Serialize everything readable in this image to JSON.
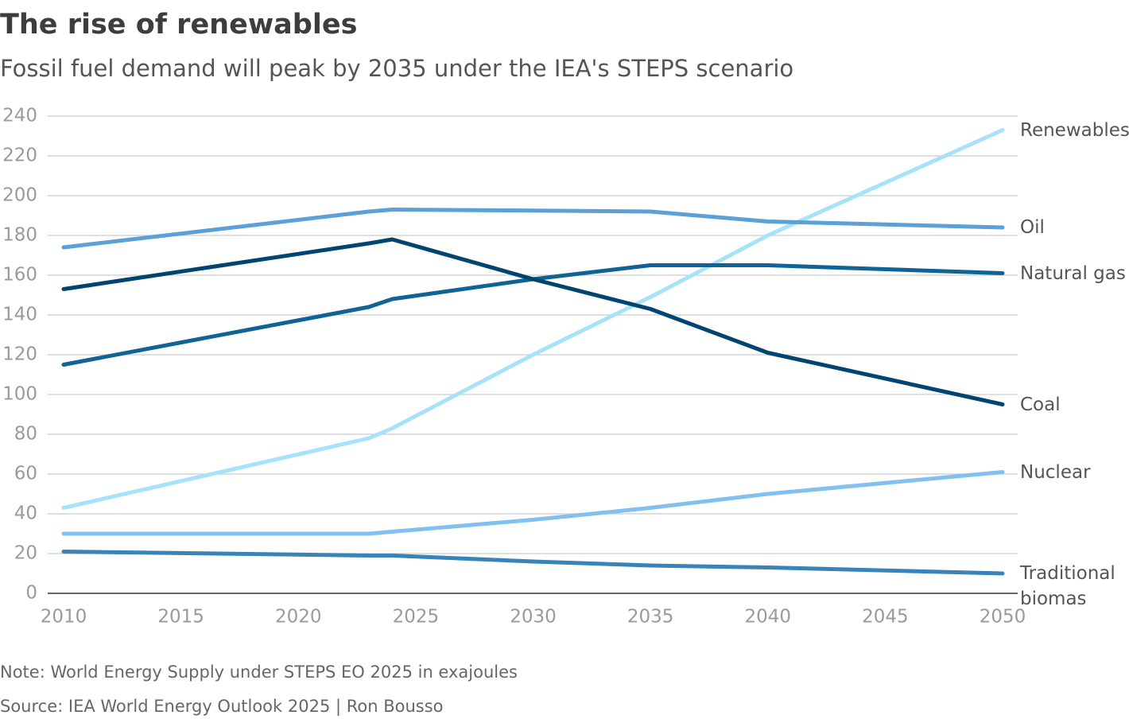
{
  "chart_data": {
    "type": "line",
    "title": "The rise of renewables",
    "subtitle": "Fossil fuel demand will peak by 2035 under the IEA's STEPS scenario",
    "note": "Note: World Energy Supply under STEPS EO 2025 in exajoules",
    "source": "Source: IEA World Energy Outlook 2025 | Ron Bousso",
    "x": [
      2010,
      2023,
      2024,
      2030,
      2035,
      2040,
      2050
    ],
    "xlim": [
      2010,
      2050
    ],
    "xticks": [
      2010,
      2015,
      2020,
      2025,
      2030,
      2035,
      2040,
      2045,
      2050
    ],
    "ylim": [
      0,
      240
    ],
    "yticks": [
      0,
      20,
      40,
      60,
      80,
      100,
      120,
      140,
      160,
      180,
      200,
      220,
      240
    ],
    "grid": true,
    "series": [
      {
        "name": "Renewables",
        "color": "#a6e3fb",
        "values": [
          43,
          78,
          83,
          120,
          149,
          180,
          233
        ]
      },
      {
        "name": "Oil",
        "color": "#5ba0d6",
        "values": [
          174,
          192,
          193,
          192.5,
          192,
          187,
          184
        ]
      },
      {
        "name": "Natural gas",
        "color": "#0f6395",
        "values": [
          115,
          144,
          148,
          158,
          165,
          165,
          161
        ]
      },
      {
        "name": "Coal",
        "color": "#004571",
        "values": [
          153,
          176,
          178,
          158,
          143,
          121,
          95
        ]
      },
      {
        "name": "Nuclear",
        "color": "#83c0f2",
        "values": [
          30,
          30,
          31,
          37,
          43,
          50,
          61
        ]
      },
      {
        "name": "Traditional biomas",
        "color": "#3a83b9",
        "values": [
          21,
          19,
          19,
          16,
          14,
          13,
          10
        ]
      }
    ]
  }
}
